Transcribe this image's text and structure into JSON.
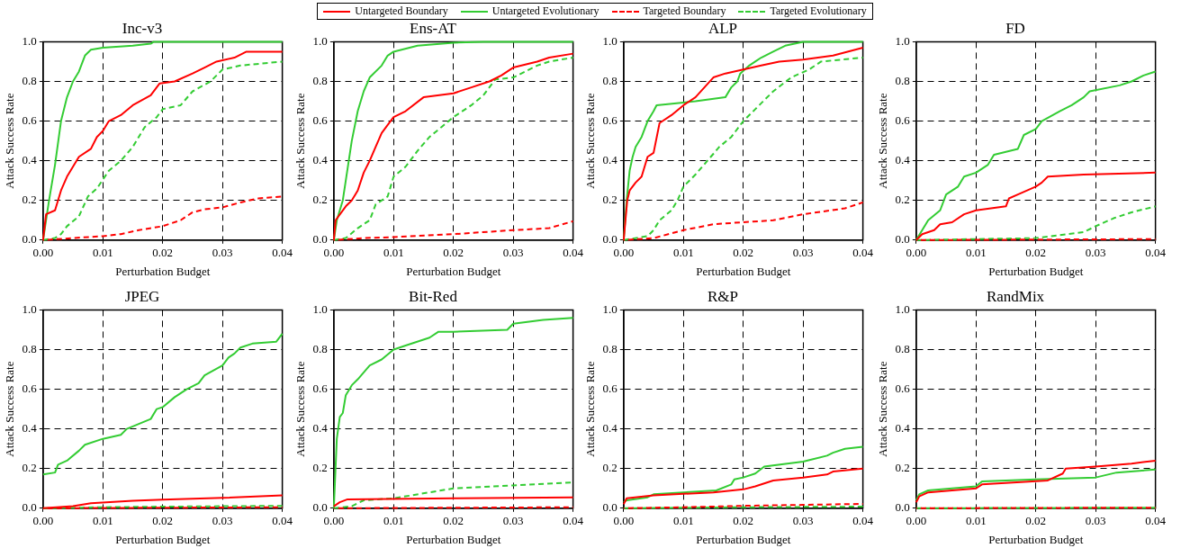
{
  "chart_data": [
    {
      "type": "line",
      "title": "Inc-v3",
      "xlabel": "Perturbation Budget",
      "ylabel": "Attack Success Rate",
      "xlim": [
        0,
        0.04
      ],
      "ylim": [
        0,
        1
      ],
      "xticks": [
        {
          "value": 0,
          "label": "0.00"
        },
        {
          "value": 0.01,
          "label": "0.01"
        },
        {
          "value": 0.02,
          "label": "0.02"
        },
        {
          "value": 0.03,
          "label": "0.03"
        },
        {
          "value": 0.04,
          "label": "0.04"
        }
      ],
      "yticks": [
        {
          "value": 0,
          "label": "0.0"
        },
        {
          "value": 0.2,
          "label": "0.2"
        },
        {
          "value": 0.4,
          "label": "0.4"
        },
        {
          "value": 0.6,
          "label": "0.6"
        },
        {
          "value": 0.8,
          "label": "0.8"
        },
        {
          "value": 1,
          "label": "1.0"
        }
      ],
      "grid": true,
      "legend": "top",
      "marker": "none",
      "series": [
        {
          "name": "Untargeted Boundary",
          "color": "#ff0000",
          "line_style": "solid",
          "x": [
            0,
            0.0005,
            0.002,
            0.003,
            0.004,
            0.005,
            0.006,
            0.008,
            0.009,
            0.01,
            0.011,
            0.013,
            0.015,
            0.018,
            0.0195,
            0.022,
            0.025,
            0.027,
            0.029,
            0.032,
            0.034,
            0.04
          ],
          "values": [
            0,
            0.13,
            0.15,
            0.25,
            0.32,
            0.37,
            0.42,
            0.46,
            0.52,
            0.55,
            0.6,
            0.63,
            0.68,
            0.73,
            0.79,
            0.8,
            0.84,
            0.87,
            0.9,
            0.92,
            0.95,
            0.95
          ]
        },
        {
          "name": "Untargeted Evolutionary",
          "color": "#33cc33",
          "line_style": "solid",
          "x": [
            0,
            0.001,
            0.002,
            0.003,
            0.004,
            0.005,
            0.006,
            0.007,
            0.008,
            0.01,
            0.015,
            0.018,
            0.0185,
            0.04
          ],
          "values": [
            0,
            0.2,
            0.38,
            0.6,
            0.72,
            0.8,
            0.85,
            0.93,
            0.96,
            0.97,
            0.98,
            0.99,
            1,
            1
          ]
        },
        {
          "name": "Targeted Boundary",
          "color": "#ff0000",
          "line_style": "dashed",
          "x": [
            0,
            0.005,
            0.01,
            0.013,
            0.016,
            0.02,
            0.023,
            0.025,
            0.027,
            0.03,
            0.033,
            0.036,
            0.04
          ],
          "values": [
            0,
            0.01,
            0.02,
            0.03,
            0.05,
            0.07,
            0.1,
            0.14,
            0.155,
            0.165,
            0.19,
            0.21,
            0.22
          ]
        },
        {
          "name": "Targeted Evolutionary",
          "color": "#33cc33",
          "line_style": "dashed",
          "x": [
            0,
            0.002,
            0.003,
            0.004,
            0.006,
            0.0075,
            0.009,
            0.011,
            0.013,
            0.015,
            0.017,
            0.019,
            0.02,
            0.023,
            0.025,
            0.028,
            0.03,
            0.033,
            0.04
          ],
          "values": [
            0,
            0.01,
            0.03,
            0.07,
            0.12,
            0.22,
            0.26,
            0.35,
            0.4,
            0.47,
            0.57,
            0.62,
            0.66,
            0.68,
            0.75,
            0.8,
            0.86,
            0.88,
            0.9
          ]
        }
      ]
    },
    {
      "type": "line",
      "title": "Ens-AT",
      "xlabel": "Perturbation Budget",
      "ylabel": "Attack Success Rate",
      "xlim": [
        0,
        0.04
      ],
      "ylim": [
        0,
        1
      ],
      "xticks": [
        {
          "value": 0,
          "label": "0.00"
        },
        {
          "value": 0.01,
          "label": "0.01"
        },
        {
          "value": 0.02,
          "label": "0.02"
        },
        {
          "value": 0.03,
          "label": "0.03"
        },
        {
          "value": 0.04,
          "label": "0.04"
        }
      ],
      "yticks": [
        {
          "value": 0,
          "label": "0.0"
        },
        {
          "value": 0.2,
          "label": "0.2"
        },
        {
          "value": 0.4,
          "label": "0.4"
        },
        {
          "value": 0.6,
          "label": "0.6"
        },
        {
          "value": 0.8,
          "label": "0.8"
        },
        {
          "value": 1,
          "label": "1.0"
        }
      ],
      "grid": true,
      "marker": "none",
      "series": [
        {
          "color": "#ff0000",
          "line_style": "solid",
          "x": [
            0,
            0.0003,
            0.002,
            0.003,
            0.004,
            0.005,
            0.006,
            0.007,
            0.008,
            0.009,
            0.01,
            0.012,
            0.015,
            0.02,
            0.023,
            0.026,
            0.028,
            0.03,
            0.034,
            0.036,
            0.04
          ],
          "values": [
            0,
            0.1,
            0.17,
            0.2,
            0.25,
            0.34,
            0.4,
            0.47,
            0.54,
            0.58,
            0.62,
            0.65,
            0.72,
            0.74,
            0.77,
            0.8,
            0.83,
            0.87,
            0.9,
            0.92,
            0.94
          ]
        },
        {
          "color": "#33cc33",
          "line_style": "solid",
          "x": [
            0,
            0.0005,
            0.0015,
            0.002,
            0.003,
            0.004,
            0.005,
            0.006,
            0.008,
            0.009,
            0.01,
            0.014,
            0.02,
            0.025,
            0.04
          ],
          "values": [
            0,
            0.1,
            0.2,
            0.3,
            0.5,
            0.65,
            0.75,
            0.82,
            0.88,
            0.93,
            0.95,
            0.98,
            0.995,
            1,
            1
          ]
        },
        {
          "color": "#ff0000",
          "line_style": "dashed",
          "x": [
            0,
            0.005,
            0.01,
            0.02,
            0.03,
            0.036,
            0.04
          ],
          "values": [
            0,
            0.01,
            0.015,
            0.03,
            0.05,
            0.06,
            0.095
          ]
        },
        {
          "color": "#33cc33",
          "line_style": "dashed",
          "x": [
            0,
            0.002,
            0.004,
            0.006,
            0.007,
            0.009,
            0.01,
            0.012,
            0.014,
            0.016,
            0.018,
            0.02,
            0.023,
            0.025,
            0.027,
            0.03,
            0.034,
            0.036,
            0.04
          ],
          "values": [
            0,
            0.01,
            0.06,
            0.1,
            0.18,
            0.22,
            0.32,
            0.37,
            0.45,
            0.52,
            0.57,
            0.62,
            0.68,
            0.73,
            0.81,
            0.82,
            0.88,
            0.9,
            0.92
          ]
        }
      ]
    },
    {
      "type": "line",
      "title": "ALP",
      "xlabel": "Perturbation Budget",
      "ylabel": "Attack Success Rate",
      "xlim": [
        0,
        0.04
      ],
      "ylim": [
        0,
        1
      ],
      "xticks": [
        {
          "value": 0,
          "label": "0.00"
        },
        {
          "value": 0.01,
          "label": "0.01"
        },
        {
          "value": 0.02,
          "label": "0.02"
        },
        {
          "value": 0.03,
          "label": "0.03"
        },
        {
          "value": 0.04,
          "label": "0.04"
        }
      ],
      "yticks": [
        {
          "value": 0,
          "label": "0.0"
        },
        {
          "value": 0.2,
          "label": "0.2"
        },
        {
          "value": 0.4,
          "label": "0.4"
        },
        {
          "value": 0.6,
          "label": "0.6"
        },
        {
          "value": 0.8,
          "label": "0.8"
        },
        {
          "value": 1,
          "label": "1.0"
        }
      ],
      "grid": true,
      "marker": "none",
      "series": [
        {
          "color": "#ff0000",
          "line_style": "solid",
          "x": [
            0,
            0.0006,
            0.001,
            0.002,
            0.003,
            0.004,
            0.005,
            0.006,
            0.008,
            0.01,
            0.012,
            0.015,
            0.017,
            0.02,
            0.023,
            0.026,
            0.03,
            0.035,
            0.04
          ],
          "values": [
            0,
            0.2,
            0.25,
            0.29,
            0.32,
            0.42,
            0.44,
            0.59,
            0.63,
            0.68,
            0.72,
            0.82,
            0.84,
            0.86,
            0.88,
            0.9,
            0.91,
            0.93,
            0.97
          ]
        },
        {
          "color": "#33cc33",
          "line_style": "solid",
          "x": [
            0,
            0.0005,
            0.001,
            0.0015,
            0.002,
            0.003,
            0.004,
            0.005,
            0.0055,
            0.012,
            0.017,
            0.018,
            0.019,
            0.0195,
            0.021,
            0.022,
            0.023,
            0.025,
            0.027,
            0.03,
            0.04
          ],
          "values": [
            0,
            0.2,
            0.35,
            0.42,
            0.47,
            0.52,
            0.6,
            0.65,
            0.68,
            0.7,
            0.72,
            0.77,
            0.8,
            0.84,
            0.88,
            0.9,
            0.92,
            0.95,
            0.98,
            1,
            1
          ]
        },
        {
          "color": "#ff0000",
          "line_style": "dashed",
          "x": [
            0,
            0.005,
            0.01,
            0.015,
            0.02,
            0.025,
            0.03,
            0.037,
            0.04
          ],
          "values": [
            0,
            0.01,
            0.05,
            0.08,
            0.09,
            0.1,
            0.13,
            0.16,
            0.19
          ]
        },
        {
          "color": "#33cc33",
          "line_style": "dashed",
          "x": [
            0,
            0.004,
            0.005,
            0.006,
            0.008,
            0.009,
            0.01,
            0.012,
            0.014,
            0.016,
            0.018,
            0.02,
            0.022,
            0.025,
            0.028,
            0.031,
            0.033,
            0.04
          ],
          "values": [
            0,
            0.02,
            0.05,
            0.1,
            0.15,
            0.2,
            0.27,
            0.33,
            0.4,
            0.47,
            0.52,
            0.6,
            0.66,
            0.75,
            0.82,
            0.86,
            0.9,
            0.92
          ]
        }
      ]
    },
    {
      "type": "line",
      "title": "FD",
      "xlabel": "Perturbation Budget",
      "ylabel": "Attack Success Rate",
      "xlim": [
        0,
        0.04
      ],
      "ylim": [
        0,
        1
      ],
      "xticks": [
        {
          "value": 0,
          "label": "0.00"
        },
        {
          "value": 0.01,
          "label": "0.01"
        },
        {
          "value": 0.02,
          "label": "0.02"
        },
        {
          "value": 0.03,
          "label": "0.03"
        },
        {
          "value": 0.04,
          "label": "0.04"
        }
      ],
      "yticks": [
        {
          "value": 0,
          "label": "0.0"
        },
        {
          "value": 0.2,
          "label": "0.2"
        },
        {
          "value": 0.4,
          "label": "0.4"
        },
        {
          "value": 0.6,
          "label": "0.6"
        },
        {
          "value": 0.8,
          "label": "0.8"
        },
        {
          "value": 1,
          "label": "1.0"
        }
      ],
      "grid": true,
      "marker": "none",
      "series": [
        {
          "color": "#ff0000",
          "line_style": "solid",
          "x": [
            0,
            0.001,
            0.003,
            0.004,
            0.006,
            0.008,
            0.01,
            0.015,
            0.0155,
            0.017,
            0.02,
            0.021,
            0.022,
            0.028,
            0.04
          ],
          "values": [
            0,
            0.03,
            0.05,
            0.08,
            0.09,
            0.13,
            0.15,
            0.17,
            0.21,
            0.23,
            0.27,
            0.29,
            0.32,
            0.33,
            0.34
          ]
        },
        {
          "color": "#33cc33",
          "line_style": "solid",
          "x": [
            0,
            0.001,
            0.002,
            0.004,
            0.005,
            0.007,
            0.008,
            0.01,
            0.012,
            0.013,
            0.017,
            0.018,
            0.02,
            0.021,
            0.024,
            0.026,
            0.028,
            0.029,
            0.034,
            0.036,
            0.038,
            0.04
          ],
          "values": [
            0,
            0.05,
            0.1,
            0.15,
            0.23,
            0.27,
            0.32,
            0.34,
            0.38,
            0.43,
            0.46,
            0.53,
            0.56,
            0.6,
            0.65,
            0.68,
            0.72,
            0.75,
            0.78,
            0.8,
            0.83,
            0.85
          ]
        },
        {
          "color": "#ff0000",
          "line_style": "dashed",
          "x": [
            0,
            0.04
          ],
          "values": [
            0,
            0.005
          ]
        },
        {
          "color": "#33cc33",
          "line_style": "dashed",
          "x": [
            0,
            0.01,
            0.02,
            0.028,
            0.03,
            0.033,
            0.036,
            0.04
          ],
          "values": [
            0,
            0.005,
            0.01,
            0.04,
            0.07,
            0.11,
            0.14,
            0.17
          ]
        }
      ]
    },
    {
      "type": "line",
      "title": "JPEG",
      "xlabel": "Perturbation Budget",
      "ylabel": "Attack Success Rate",
      "xlim": [
        0,
        0.04
      ],
      "ylim": [
        0,
        1
      ],
      "xticks": [
        {
          "value": 0,
          "label": "0.00"
        },
        {
          "value": 0.01,
          "label": "0.01"
        },
        {
          "value": 0.02,
          "label": "0.02"
        },
        {
          "value": 0.03,
          "label": "0.03"
        },
        {
          "value": 0.04,
          "label": "0.04"
        }
      ],
      "yticks": [
        {
          "value": 0,
          "label": "0.0"
        },
        {
          "value": 0.2,
          "label": "0.2"
        },
        {
          "value": 0.4,
          "label": "0.4"
        },
        {
          "value": 0.6,
          "label": "0.6"
        },
        {
          "value": 0.8,
          "label": "0.8"
        },
        {
          "value": 1,
          "label": "1.0"
        }
      ],
      "grid": true,
      "marker": "none",
      "series": [
        {
          "color": "#ff0000",
          "line_style": "solid",
          "x": [
            0,
            0.005,
            0.008,
            0.015,
            0.02,
            0.03,
            0.04
          ],
          "values": [
            0,
            0.01,
            0.025,
            0.038,
            0.043,
            0.052,
            0.065
          ]
        },
        {
          "color": "#33cc33",
          "line_style": "solid",
          "x": [
            0,
            0.002,
            0.0025,
            0.004,
            0.006,
            0.007,
            0.01,
            0.013,
            0.014,
            0.018,
            0.019,
            0.02,
            0.022,
            0.024,
            0.026,
            0.027,
            0.03,
            0.031,
            0.032,
            0.033,
            0.035,
            0.039,
            0.04
          ],
          "values": [
            0.17,
            0.18,
            0.22,
            0.24,
            0.29,
            0.32,
            0.35,
            0.37,
            0.4,
            0.45,
            0.5,
            0.51,
            0.56,
            0.6,
            0.63,
            0.67,
            0.72,
            0.76,
            0.78,
            0.81,
            0.83,
            0.84,
            0.88
          ]
        },
        {
          "color": "#ff0000",
          "line_style": "dashed",
          "x": [
            0,
            0.04
          ],
          "values": [
            0,
            0.005
          ]
        },
        {
          "color": "#33cc33",
          "line_style": "dashed",
          "x": [
            0,
            0.01,
            0.02,
            0.04
          ],
          "values": [
            0,
            0.005,
            0.008,
            0.012
          ]
        }
      ]
    },
    {
      "type": "line",
      "title": "Bit-Red",
      "xlabel": "Perturbation Budget",
      "ylabel": "Attack Success Rate",
      "xlim": [
        0,
        0.04
      ],
      "ylim": [
        0,
        1
      ],
      "xticks": [
        {
          "value": 0,
          "label": "0.00"
        },
        {
          "value": 0.01,
          "label": "0.01"
        },
        {
          "value": 0.02,
          "label": "0.02"
        },
        {
          "value": 0.03,
          "label": "0.03"
        },
        {
          "value": 0.04,
          "label": "0.04"
        }
      ],
      "yticks": [
        {
          "value": 0,
          "label": "0.0"
        },
        {
          "value": 0.2,
          "label": "0.2"
        },
        {
          "value": 0.4,
          "label": "0.4"
        },
        {
          "value": 0.6,
          "label": "0.6"
        },
        {
          "value": 0.8,
          "label": "0.8"
        },
        {
          "value": 1,
          "label": "1.0"
        }
      ],
      "grid": true,
      "marker": "none",
      "series": [
        {
          "color": "#ff0000",
          "line_style": "solid",
          "x": [
            0,
            0.001,
            0.0023,
            0.02,
            0.04
          ],
          "values": [
            0.01,
            0.03,
            0.045,
            0.05,
            0.055
          ]
        },
        {
          "color": "#33cc33",
          "line_style": "solid",
          "x": [
            0,
            0.0005,
            0.001,
            0.0015,
            0.002,
            0.003,
            0.004,
            0.006,
            0.008,
            0.01,
            0.012,
            0.016,
            0.0175,
            0.02,
            0.029,
            0.03,
            0.035,
            0.04
          ],
          "values": [
            0,
            0.35,
            0.46,
            0.48,
            0.57,
            0.62,
            0.65,
            0.72,
            0.75,
            0.8,
            0.82,
            0.86,
            0.89,
            0.89,
            0.9,
            0.93,
            0.95,
            0.96
          ]
        },
        {
          "color": "#ff0000",
          "line_style": "dashed",
          "x": [
            0,
            0.04
          ],
          "values": [
            0,
            0.005
          ]
        },
        {
          "color": "#33cc33",
          "line_style": "dashed",
          "x": [
            0,
            0.003,
            0.005,
            0.01,
            0.02,
            0.03,
            0.04
          ],
          "values": [
            0,
            0.01,
            0.04,
            0.05,
            0.1,
            0.115,
            0.13
          ]
        }
      ]
    },
    {
      "type": "line",
      "title": "R&P",
      "xlabel": "Perturbation Budget",
      "ylabel": "Attack Success Rate",
      "xlim": [
        0,
        0.04
      ],
      "ylim": [
        0,
        1
      ],
      "xticks": [
        {
          "value": 0,
          "label": "0.00"
        },
        {
          "value": 0.01,
          "label": "0.01"
        },
        {
          "value": 0.02,
          "label": "0.02"
        },
        {
          "value": 0.03,
          "label": "0.03"
        },
        {
          "value": 0.04,
          "label": "0.04"
        }
      ],
      "yticks": [
        {
          "value": 0,
          "label": "0.0"
        },
        {
          "value": 0.2,
          "label": "0.2"
        },
        {
          "value": 0.4,
          "label": "0.4"
        },
        {
          "value": 0.6,
          "label": "0.6"
        },
        {
          "value": 0.8,
          "label": "0.8"
        },
        {
          "value": 1,
          "label": "1.0"
        }
      ],
      "grid": true,
      "marker": "none",
      "series": [
        {
          "color": "#ff0000",
          "line_style": "solid",
          "x": [
            0,
            0.0005,
            0.005,
            0.015,
            0.02,
            0.022,
            0.025,
            0.03,
            0.034,
            0.035,
            0.04
          ],
          "values": [
            0.02,
            0.05,
            0.065,
            0.08,
            0.095,
            0.11,
            0.14,
            0.155,
            0.17,
            0.185,
            0.2
          ]
        },
        {
          "color": "#33cc33",
          "line_style": "solid",
          "x": [
            0,
            0.0005,
            0.004,
            0.005,
            0.01,
            0.0155,
            0.018,
            0.0185,
            0.02,
            0.022,
            0.0235,
            0.03,
            0.034,
            0.035,
            0.037,
            0.04
          ],
          "values": [
            0.03,
            0.04,
            0.055,
            0.07,
            0.08,
            0.09,
            0.12,
            0.145,
            0.155,
            0.175,
            0.21,
            0.235,
            0.265,
            0.28,
            0.3,
            0.31
          ]
        },
        {
          "color": "#ff0000",
          "line_style": "dashed",
          "x": [
            0,
            0.01,
            0.02,
            0.03,
            0.04
          ],
          "values": [
            0,
            0.005,
            0.012,
            0.017,
            0.022
          ]
        },
        {
          "color": "#33cc33",
          "line_style": "dashed",
          "x": [
            0,
            0.02,
            0.04
          ],
          "values": [
            0,
            0.005,
            0.008
          ]
        }
      ]
    },
    {
      "type": "line",
      "title": "RandMix",
      "xlabel": "Perturbation Budget",
      "ylabel": "Attack Success Rate",
      "xlim": [
        0,
        0.04
      ],
      "ylim": [
        0,
        1
      ],
      "xticks": [
        {
          "value": 0,
          "label": "0.00"
        },
        {
          "value": 0.01,
          "label": "0.01"
        },
        {
          "value": 0.02,
          "label": "0.02"
        },
        {
          "value": 0.03,
          "label": "0.03"
        },
        {
          "value": 0.04,
          "label": "0.04"
        }
      ],
      "yticks": [
        {
          "value": 0,
          "label": "0.0"
        },
        {
          "value": 0.2,
          "label": "0.2"
        },
        {
          "value": 0.4,
          "label": "0.4"
        },
        {
          "value": 0.6,
          "label": "0.6"
        },
        {
          "value": 0.8,
          "label": "0.8"
        },
        {
          "value": 1,
          "label": "1.0"
        }
      ],
      "grid": true,
      "marker": "none",
      "series": [
        {
          "color": "#ff0000",
          "line_style": "solid",
          "x": [
            0,
            0.0005,
            0.002,
            0.01,
            0.011,
            0.022,
            0.0245,
            0.025,
            0.03,
            0.036,
            0.04
          ],
          "values": [
            0.03,
            0.06,
            0.08,
            0.1,
            0.12,
            0.14,
            0.175,
            0.2,
            0.21,
            0.225,
            0.24
          ]
        },
        {
          "color": "#33cc33",
          "line_style": "solid",
          "x": [
            0,
            0.0005,
            0.002,
            0.01,
            0.011,
            0.02,
            0.03,
            0.0335,
            0.04
          ],
          "values": [
            0.04,
            0.07,
            0.09,
            0.11,
            0.135,
            0.145,
            0.155,
            0.18,
            0.195
          ]
        },
        {
          "color": "#ff0000",
          "line_style": "dashed",
          "x": [
            0,
            0.04
          ],
          "values": [
            0,
            0.003
          ]
        },
        {
          "color": "#33cc33",
          "line_style": "dashed",
          "x": [
            0,
            0.04
          ],
          "values": [
            0,
            0.003
          ]
        }
      ]
    }
  ]
}
